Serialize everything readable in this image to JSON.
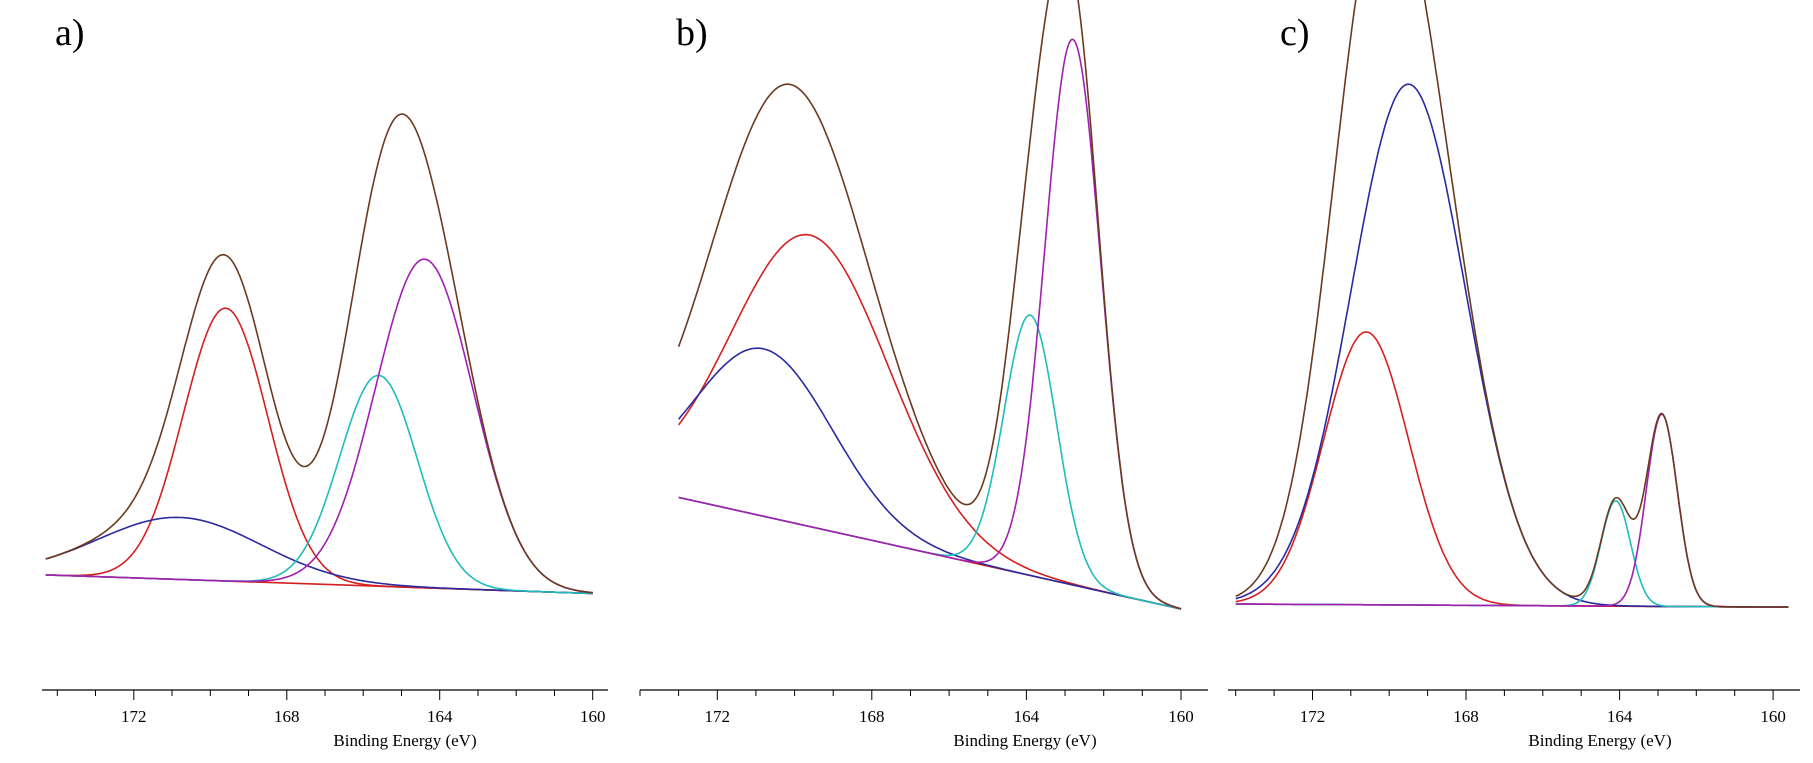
{
  "chart_data": [
    {
      "type": "line",
      "panel_label": "a)",
      "xlabel": "Binding Energy (eV)",
      "ylabel": "",
      "x_reversed": true,
      "xlim": [
        174.4,
        159.6
      ],
      "ylim": [
        0,
        100
      ],
      "xticks": [
        172,
        168,
        164,
        160
      ],
      "tick_labels": [
        "172",
        "168",
        "164",
        "160"
      ],
      "grid": false,
      "legend": "none",
      "background": {
        "color": "#d42020",
        "x0": 174.3,
        "y0": 10.5,
        "x1": 160.0,
        "y1": 7.5
      },
      "envelope": {
        "color": "#6b3a1e"
      },
      "components": [
        {
          "color": "#d42020",
          "center": 169.6,
          "height": 44,
          "fwhm": 2.6,
          "shape": "gauss"
        },
        {
          "color": "#2a2aa0",
          "center": 170.8,
          "height": 10,
          "fwhm": 5.0,
          "shape": "gauss"
        },
        {
          "color": "#20bcbc",
          "center": 165.6,
          "height": 34,
          "fwhm": 2.4,
          "shape": "gauss"
        },
        {
          "color": "#a020b0",
          "center": 164.4,
          "height": 53,
          "fwhm": 3.0,
          "shape": "gauss"
        }
      ]
    },
    {
      "type": "line",
      "panel_label": "b)",
      "xlabel": "Binding Energy (eV)",
      "ylabel": "",
      "x_reversed": true,
      "xlim": [
        174.0,
        159.3
      ],
      "ylim": [
        0,
        100
      ],
      "xticks": [
        172,
        168,
        164,
        160
      ],
      "tick_labels": [
        "172",
        "168",
        "164",
        "160"
      ],
      "grid": false,
      "legend": "none",
      "background": {
        "color": "#d42020",
        "x0": 173.0,
        "y0": 23.0,
        "x1": 160.0,
        "y1": 5.0
      },
      "envelope": {
        "color": "#6b3a1e"
      },
      "components": [
        {
          "color": "#d42020",
          "center": 169.6,
          "height": 47,
          "fwhm": 4.8,
          "shape": "gauss"
        },
        {
          "color": "#2a2aa0",
          "center": 170.8,
          "height": 27,
          "fwhm": 4.2,
          "shape": "gauss"
        },
        {
          "color": "#20bcbc",
          "center": 163.9,
          "height": 42,
          "fwhm": 1.6,
          "shape": "gauss"
        },
        {
          "color": "#a020b0",
          "center": 162.8,
          "height": 88,
          "fwhm": 1.7,
          "shape": "gauss"
        }
      ]
    },
    {
      "type": "line",
      "panel_label": "c)",
      "xlabel": "Binding Energy (eV)",
      "ylabel": "",
      "x_reversed": true,
      "xlim": [
        174.2,
        159.3
      ],
      "ylim": [
        0,
        100
      ],
      "xticks": [
        172,
        168,
        164,
        160
      ],
      "tick_labels": [
        "172",
        "168",
        "164",
        "160"
      ],
      "grid": false,
      "legend": "none",
      "background": {
        "color": "#d42020",
        "x0": 174.0,
        "y0": 5.8,
        "x1": 159.6,
        "y1": 5.3
      },
      "envelope": {
        "color": "#6b3a1e"
      },
      "components": [
        {
          "color": "#d42020",
          "center": 170.6,
          "height": 44,
          "fwhm": 2.6,
          "shape": "gauss"
        },
        {
          "color": "#2a2aa0",
          "center": 169.5,
          "height": 84,
          "fwhm": 3.5,
          "shape": "gauss"
        },
        {
          "color": "#20bcbc",
          "center": 164.1,
          "height": 17,
          "fwhm": 0.9,
          "shape": "gauss"
        },
        {
          "color": "#a020b0",
          "center": 162.9,
          "height": 31,
          "fwhm": 0.95,
          "shape": "gauss"
        }
      ]
    }
  ]
}
